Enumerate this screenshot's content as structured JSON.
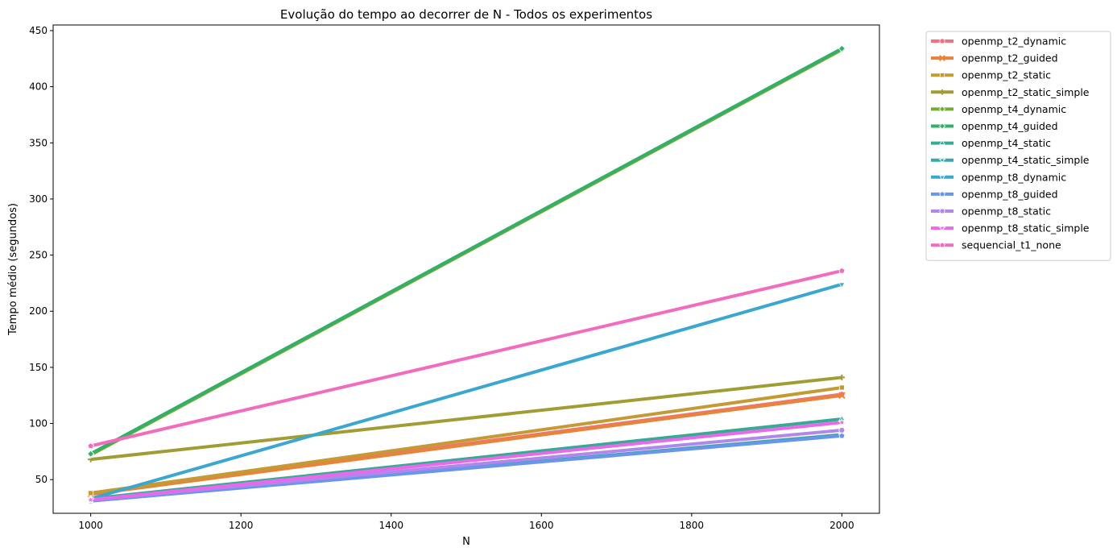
{
  "chart_data": {
    "type": "line",
    "title": "Evolução do tempo ao decorrer de N - Todos os experimentos",
    "xlabel": "N",
    "ylabel": "Tempo médio (segundos)",
    "x": [
      1000,
      2000
    ],
    "xlim": [
      950,
      2050
    ],
    "ylim": [
      20,
      455
    ],
    "xticks": [
      "1000",
      "1200",
      "1400",
      "1600",
      "1800",
      "2000"
    ],
    "yticks": [
      "50",
      "100",
      "150",
      "200",
      "250",
      "300",
      "350",
      "400",
      "450"
    ],
    "grid": false,
    "legend_position": "outside-right",
    "series": [
      {
        "name": "openmp_t2_dynamic",
        "color": "#f2707f",
        "marker": "circle",
        "values": [
          38,
          126
        ]
      },
      {
        "name": "openmp_t2_guided",
        "color": "#e8833a",
        "marker": "x",
        "values": [
          37,
          125
        ]
      },
      {
        "name": "openmp_t2_static",
        "color": "#c49a32",
        "marker": "square",
        "values": [
          38,
          132
        ]
      },
      {
        "name": "openmp_t2_static_simple",
        "color": "#a19c34",
        "marker": "plus",
        "values": [
          68,
          141
        ]
      },
      {
        "name": "openmp_t4_dynamic",
        "color": "#76ab33",
        "marker": "diamond",
        "values": [
          72,
          433
        ]
      },
      {
        "name": "openmp_t4_guided",
        "color": "#33b068",
        "marker": "diamond",
        "values": [
          73,
          434
        ]
      },
      {
        "name": "openmp_t4_static",
        "color": "#36ab94",
        "marker": "triangle-up",
        "values": [
          33,
          104
        ]
      },
      {
        "name": "openmp_t4_static_simple",
        "color": "#37a8ab",
        "marker": "star",
        "values": [
          31,
          90
        ]
      },
      {
        "name": "openmp_t8_dynamic",
        "color": "#39a7d0",
        "marker": "triangle-down",
        "values": [
          33,
          224
        ]
      },
      {
        "name": "openmp_t8_guided",
        "color": "#6896ec",
        "marker": "pentagon",
        "values": [
          31,
          89
        ]
      },
      {
        "name": "openmp_t8_static",
        "color": "#b187ec",
        "marker": "hexagon",
        "values": [
          32,
          94
        ]
      },
      {
        "name": "openmp_t8_static_simple",
        "color": "#ea68ec",
        "marker": "star",
        "values": [
          32,
          101
        ]
      },
      {
        "name": "sequencial_t1_none",
        "color": "#f36bbf",
        "marker": "pentagon",
        "values": [
          80,
          236
        ]
      }
    ]
  }
}
